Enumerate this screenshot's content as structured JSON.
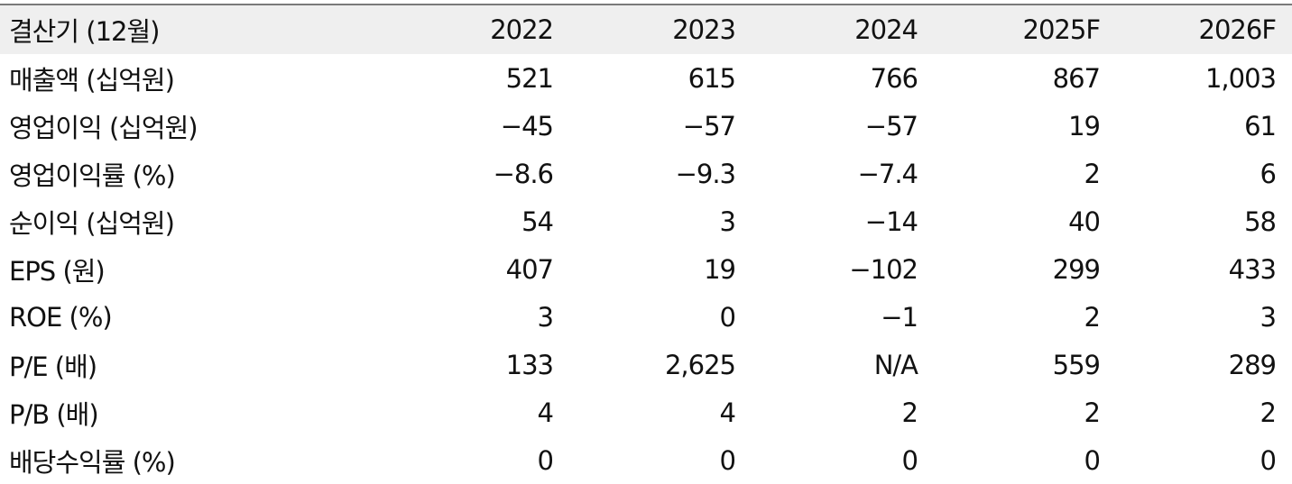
{
  "table": {
    "header": {
      "label": "결산기 (12월)",
      "years": [
        "2022",
        "2023",
        "2024",
        "2025F",
        "2026F"
      ]
    },
    "rows": [
      {
        "label": "매출액 (십억원)",
        "values": [
          "521",
          "615",
          "766",
          "867",
          "1,003"
        ]
      },
      {
        "label": "영업이익 (십억원)",
        "values": [
          "−45",
          "−57",
          "−57",
          "19",
          "61"
        ]
      },
      {
        "label": "영업이익률 (%)",
        "values": [
          "−8.6",
          "−9.3",
          "−7.4",
          "2",
          "6"
        ]
      },
      {
        "label": "순이익 (십억원)",
        "values": [
          "54",
          "3",
          "−14",
          "40",
          "58"
        ]
      },
      {
        "label": "EPS (원)",
        "values": [
          "407",
          "19",
          "−102",
          "299",
          "433"
        ]
      },
      {
        "label": "ROE (%)",
        "values": [
          "3",
          "0",
          "−1",
          "2",
          "3"
        ]
      },
      {
        "label": "P/E (배)",
        "values": [
          "133",
          "2,625",
          "N/A",
          "559",
          "289"
        ]
      },
      {
        "label": "P/B (배)",
        "values": [
          "4",
          "4",
          "2",
          "2",
          "2"
        ]
      },
      {
        "label": "배당수익률 (%)",
        "values": [
          "0",
          "0",
          "0",
          "0",
          "0"
        ]
      }
    ]
  }
}
